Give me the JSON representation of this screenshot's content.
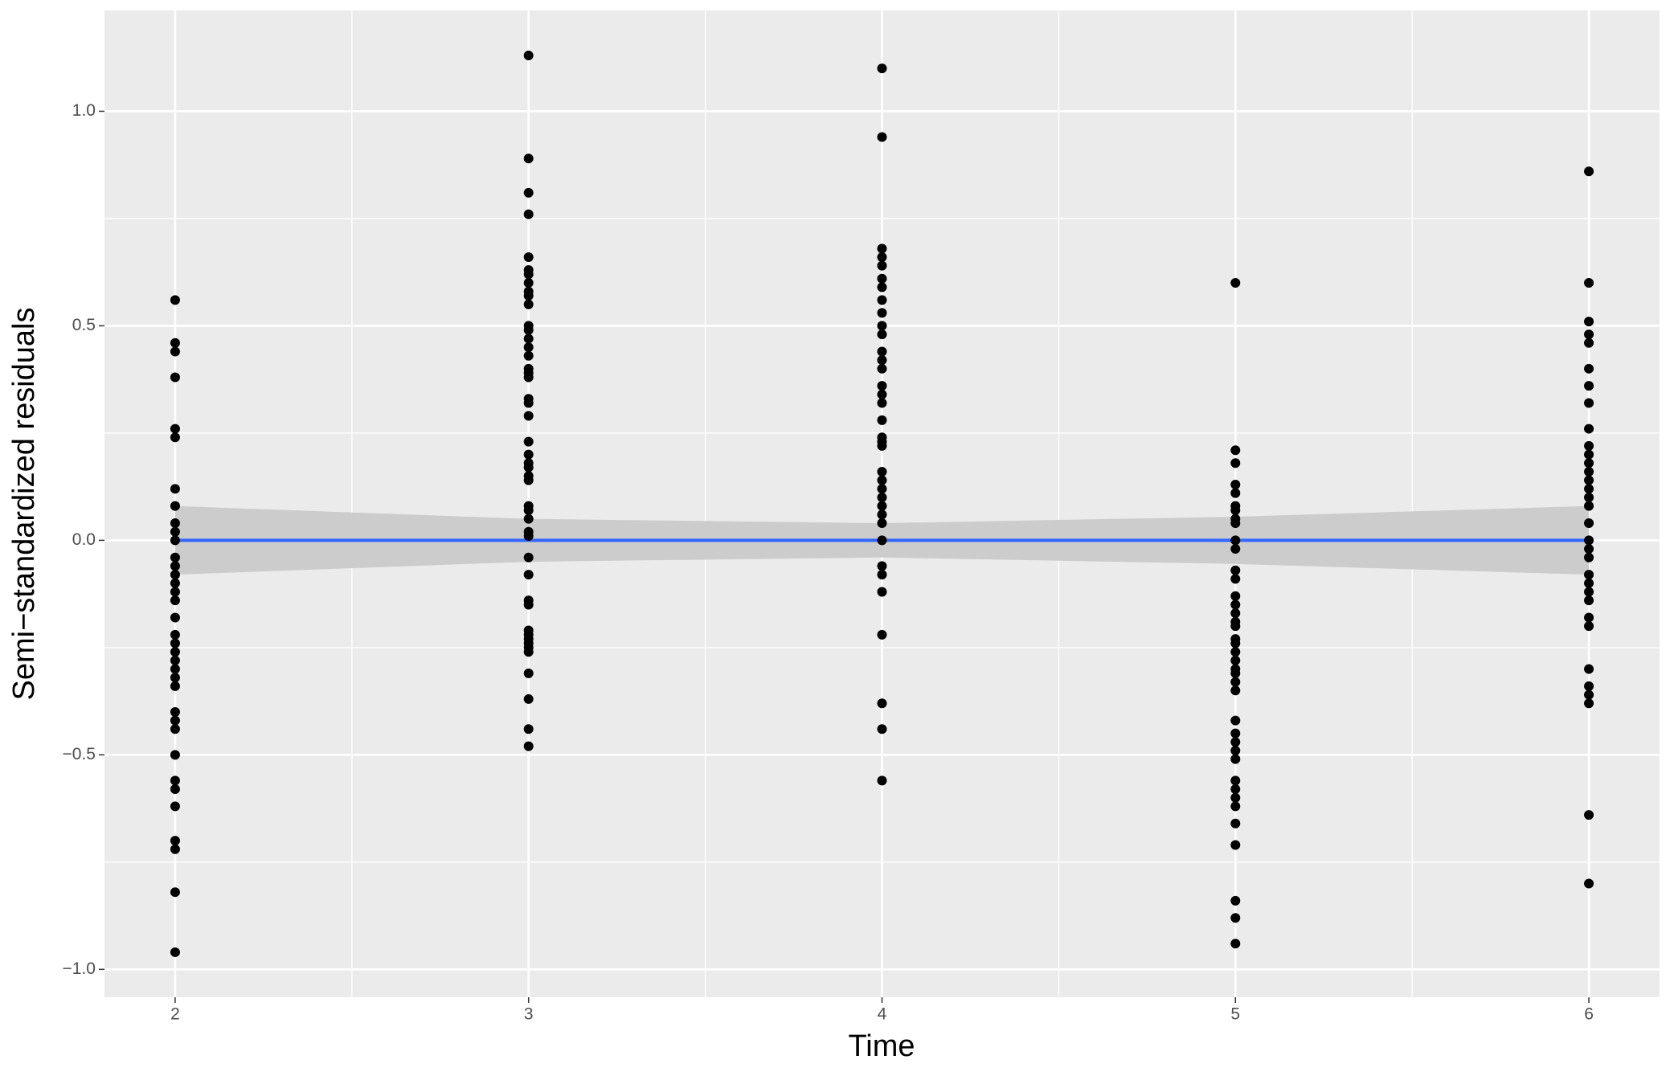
{
  "chart_data": {
    "type": "scatter",
    "x_label": "Time",
    "y_label": "Semi−standardized residuals",
    "x": [
      2,
      2,
      2,
      2,
      2,
      2,
      2,
      2,
      2,
      2,
      2,
      2,
      2,
      2,
      2,
      2,
      2,
      2,
      2,
      2,
      2,
      2,
      2,
      2,
      2,
      2,
      2,
      2,
      2,
      2,
      2,
      2,
      2,
      2,
      2,
      2,
      3,
      3,
      3,
      3,
      3,
      3,
      3,
      3,
      3,
      3,
      3,
      3,
      3,
      3,
      3,
      3,
      3,
      3,
      3,
      3,
      3,
      3,
      3,
      3,
      3,
      3,
      3,
      3,
      3,
      3,
      3,
      3,
      3,
      3,
      3,
      3,
      3,
      3,
      3,
      3,
      3,
      3,
      3,
      3,
      3,
      3,
      3,
      4,
      4,
      4,
      4,
      4,
      4,
      4,
      4,
      4,
      4,
      4,
      4,
      4,
      4,
      4,
      4,
      4,
      4,
      4,
      4,
      4,
      4,
      4,
      4,
      4,
      4,
      4,
      4,
      4,
      4,
      4,
      4,
      4,
      4,
      4,
      4,
      5,
      5,
      5,
      5,
      5,
      5,
      5,
      5,
      5,
      5,
      5,
      5,
      5,
      5,
      5,
      5,
      5,
      5,
      5,
      5,
      5,
      5,
      5,
      5,
      5,
      5,
      5,
      5,
      5,
      5,
      5,
      5,
      5,
      5,
      5,
      5,
      5,
      5,
      5,
      5,
      6,
      6,
      6,
      6,
      6,
      6,
      6,
      6,
      6,
      6,
      6,
      6,
      6,
      6,
      6,
      6,
      6,
      6,
      6,
      6,
      6,
      6,
      6,
      6,
      6,
      6,
      6,
      6,
      6,
      6,
      6,
      6,
      6
    ],
    "values": [
      0.56,
      0.46,
      0.44,
      0.38,
      0.26,
      0.24,
      0.12,
      0.08,
      0.04,
      0.02,
      0.0,
      -0.04,
      -0.06,
      -0.08,
      -0.1,
      -0.12,
      -0.14,
      -0.18,
      -0.22,
      -0.24,
      -0.26,
      -0.28,
      -0.3,
      -0.32,
      -0.34,
      -0.4,
      -0.42,
      -0.44,
      -0.5,
      -0.56,
      -0.58,
      -0.62,
      -0.7,
      -0.72,
      -0.82,
      -0.96,
      1.13,
      0.89,
      0.81,
      0.76,
      0.66,
      0.63,
      0.62,
      0.6,
      0.58,
      0.57,
      0.55,
      0.5,
      0.49,
      0.47,
      0.45,
      0.43,
      0.4,
      0.39,
      0.38,
      0.33,
      0.32,
      0.29,
      0.23,
      0.2,
      0.18,
      0.17,
      0.15,
      0.14,
      0.08,
      0.07,
      0.05,
      0.02,
      0.01,
      -0.04,
      -0.08,
      -0.14,
      -0.15,
      -0.21,
      -0.22,
      -0.23,
      -0.24,
      -0.25,
      -0.26,
      -0.31,
      -0.37,
      -0.44,
      -0.48,
      1.1,
      0.94,
      0.68,
      0.66,
      0.64,
      0.61,
      0.59,
      0.56,
      0.53,
      0.5,
      0.48,
      0.44,
      0.42,
      0.4,
      0.36,
      0.34,
      0.32,
      0.28,
      0.24,
      0.23,
      0.22,
      0.16,
      0.14,
      0.12,
      0.1,
      0.08,
      0.06,
      0.04,
      0.0,
      -0.06,
      -0.08,
      -0.12,
      -0.22,
      -0.38,
      -0.44,
      -0.56,
      0.6,
      0.21,
      0.18,
      0.13,
      0.11,
      0.08,
      0.07,
      0.05,
      0.04,
      0.0,
      -0.02,
      -0.07,
      -0.09,
      -0.13,
      -0.15,
      -0.17,
      -0.19,
      -0.2,
      -0.23,
      -0.24,
      -0.26,
      -0.28,
      -0.3,
      -0.31,
      -0.33,
      -0.35,
      -0.42,
      -0.45,
      -0.47,
      -0.49,
      -0.51,
      -0.56,
      -0.58,
      -0.6,
      -0.62,
      -0.66,
      -0.71,
      -0.84,
      -0.88,
      -0.94,
      0.86,
      0.6,
      0.51,
      0.48,
      0.46,
      0.4,
      0.36,
      0.32,
      0.26,
      0.22,
      0.2,
      0.18,
      0.16,
      0.14,
      0.12,
      0.1,
      0.08,
      0.04,
      0.0,
      -0.02,
      -0.04,
      -0.08,
      -0.1,
      -0.12,
      -0.14,
      -0.18,
      -0.2,
      -0.3,
      -0.34,
      -0.36,
      -0.38,
      -0.64,
      -0.8
    ],
    "color": "#000000",
    "smooth": {
      "x": [
        2,
        3,
        4,
        5,
        6
      ],
      "values": [
        0,
        0,
        0,
        0,
        0
      ],
      "lower": [
        -0.08,
        -0.05,
        -0.04,
        -0.055,
        -0.08
      ],
      "upper": [
        0.08,
        0.05,
        0.04,
        0.055,
        0.08
      ],
      "color": "#3366FF",
      "band_color": "#cccccc"
    },
    "xlim": [
      1.8,
      6.2
    ],
    "ylim": [
      -1.065,
      1.235
    ],
    "xticks": [
      2,
      3,
      4,
      5,
      6
    ],
    "yticks": [
      {
        "value": -1,
        "label": "−1.0"
      },
      {
        "value": -0.5,
        "label": "−0.5"
      },
      {
        "value": 0,
        "label": "0.0"
      },
      {
        "value": 0.5,
        "label": "0.5"
      },
      {
        "value": 1,
        "label": "1.0"
      }
    ],
    "minor_xticks": [
      2.5,
      3.5,
      4.5,
      5.5
    ],
    "minor_yticks": [
      -0.75,
      -0.25,
      0.25,
      0.75
    ],
    "grid": true
  }
}
